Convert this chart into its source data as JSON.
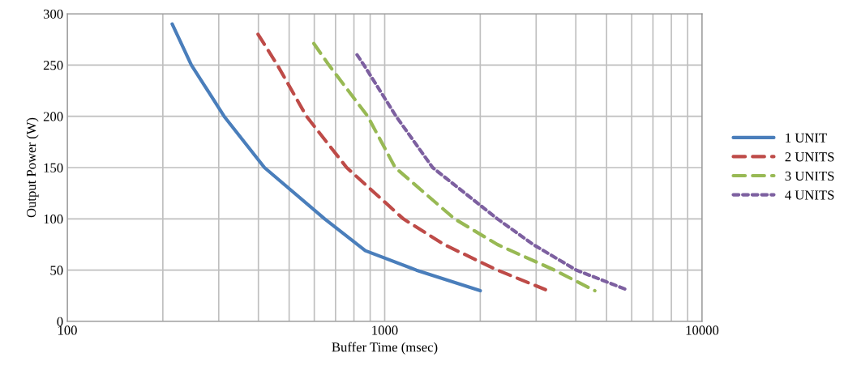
{
  "chart_data": {
    "type": "line",
    "xlabel": "Buffer Time (msec)",
    "ylabel": "Output Power (W)",
    "log": "x",
    "xlim": [
      100,
      10000
    ],
    "ylim": [
      0,
      300
    ],
    "xticks": [
      100,
      {
        "value": 200,
        "label": null
      },
      {
        "value": 300,
        "label": null
      },
      {
        "value": 400,
        "label": null
      },
      {
        "value": 500,
        "label": null
      },
      {
        "value": 600,
        "label": null
      },
      {
        "value": 700,
        "label": null
      },
      {
        "value": 800,
        "label": null
      },
      {
        "value": 900,
        "label": null
      },
      1000,
      {
        "value": 2000,
        "label": null
      },
      {
        "value": 3000,
        "label": null
      },
      {
        "value": 4000,
        "label": null
      },
      {
        "value": 5000,
        "label": null
      },
      {
        "value": 6000,
        "label": null
      },
      {
        "value": 7000,
        "label": null
      },
      {
        "value": 8000,
        "label": null
      },
      {
        "value": 9000,
        "label": null
      },
      10000
    ],
    "yticks": [
      0,
      50,
      100,
      150,
      200,
      250,
      300
    ],
    "grid": true,
    "legend": "right",
    "marker": "none",
    "series": [
      {
        "name": "1 UNIT",
        "color": "#4a7ebb",
        "line_style": "solid",
        "x": [
          214,
          246,
          312,
          418,
          647,
          869,
          1258,
          2000
        ],
        "values": [
          290,
          250,
          200,
          150,
          100,
          69,
          50,
          30
        ]
      },
      {
        "name": "2 UNITS",
        "color": "#be4b48",
        "line_style": "dashed",
        "x": [
          399,
          459,
          567,
          759,
          1145,
          1538,
          2265,
          3210
        ],
        "values": [
          280,
          250,
          200,
          150,
          100,
          75,
          50,
          31
        ]
      },
      {
        "name": "3 UNITS",
        "color": "#98b954",
        "line_style": "dashed",
        "x": [
          598,
          667,
          884,
          1079,
          1660,
          2265,
          3428,
          4592
        ],
        "values": [
          271,
          250,
          200,
          150,
          100,
          75,
          50,
          30
        ]
      },
      {
        "name": "4 UNITS",
        "color": "#7d60a0",
        "line_style": "dotted",
        "x": [
          818,
          860,
          1086,
          1416,
          2265,
          2937,
          4018,
          5780
        ],
        "values": [
          260,
          250,
          200,
          150,
          100,
          75,
          50,
          31
        ]
      }
    ]
  }
}
